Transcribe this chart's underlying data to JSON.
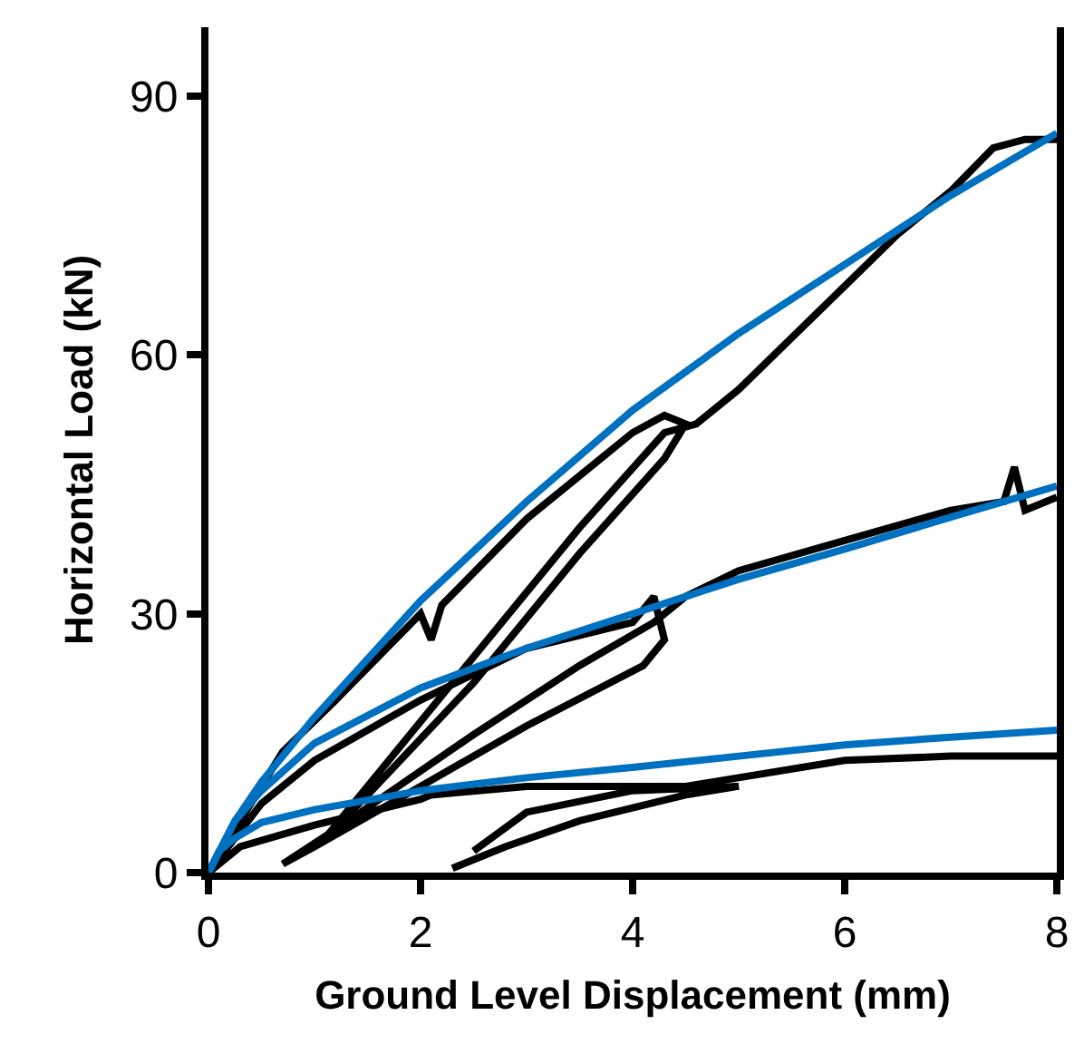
{
  "chart_data": {
    "type": "line",
    "xlabel": "Ground Level Displacement (mm)",
    "ylabel": "Horizontal Load (kN)",
    "xlim": [
      0,
      8
    ],
    "xticks": [
      0,
      2,
      4,
      6,
      8
    ],
    "ylim": [
      0,
      98
    ],
    "yticks": [
      0,
      30,
      60,
      90
    ],
    "marker": "none",
    "line_style": "solid",
    "series": [
      {
        "color": "#000000",
        "x": [
          0,
          0.3,
          0.7,
          1.2,
          2,
          2.1,
          2.2,
          3,
          4,
          4.3,
          4.5,
          4.3,
          3.5,
          2.5,
          1.5,
          1.1,
          1.3,
          2.5,
          3.5,
          4.3,
          4.6,
          5,
          5.5,
          6,
          6.5,
          7,
          7.4,
          7.7,
          8
        ],
        "values": [
          0,
          6,
          14,
          20,
          30,
          27,
          31,
          41,
          51,
          53,
          52,
          48,
          37,
          22,
          9,
          4,
          7,
          25,
          40,
          51,
          52,
          56,
          62,
          68,
          74,
          79,
          84,
          85,
          85
        ]
      },
      {
        "color": "#000000",
        "x": [
          0,
          0.5,
          1,
          2,
          3,
          4,
          4.2,
          4.3,
          4.1,
          3,
          2,
          1,
          0.7,
          1.2,
          2.5,
          3.5,
          4.2,
          4.5,
          5,
          6,
          7,
          7.5,
          7.6,
          7.7,
          8
        ],
        "values": [
          0,
          8,
          13,
          20,
          26,
          29,
          32,
          27,
          24,
          17,
          10,
          3,
          1,
          5,
          16,
          24,
          29,
          32,
          35,
          38.5,
          42,
          43,
          47,
          42,
          43.5
        ]
      },
      {
        "color": "#000000",
        "x": [
          0,
          0.3,
          1,
          2,
          2.1,
          3,
          4,
          4.5,
          5,
          6,
          7,
          8
        ],
        "values": [
          0,
          3,
          5.5,
          8.5,
          9,
          10,
          10,
          10,
          11,
          13,
          13.5,
          13.5
        ]
      },
      {
        "color": "#000000",
        "x": [
          2.3,
          2.8,
          3.5,
          4.5,
          5,
          4,
          3,
          2.5
        ],
        "values": [
          0.5,
          3,
          6,
          9,
          10,
          9.5,
          7,
          2.5
        ]
      },
      {
        "color": "#0070c0",
        "x": [
          0,
          0.25,
          0.5,
          1,
          2,
          3,
          4,
          5,
          6,
          7,
          8
        ],
        "values": [
          0,
          6,
          10.5,
          18,
          31.5,
          43,
          53.6,
          62.5,
          70.5,
          78.5,
          85.7
        ]
      },
      {
        "color": "#0070c0",
        "x": [
          0,
          0.25,
          0.5,
          1,
          2,
          3,
          4,
          5,
          6,
          7,
          8
        ],
        "values": [
          0,
          6,
          9.5,
          15,
          21.4,
          26,
          30,
          34,
          37.5,
          41.2,
          44.8
        ]
      },
      {
        "color": "#0070c0",
        "x": [
          0,
          0.1,
          0.25,
          0.5,
          1,
          2,
          3,
          4,
          5,
          6,
          7,
          8
        ],
        "values": [
          0,
          2.5,
          4,
          5.8,
          7.3,
          9.5,
          11,
          12.2,
          13.5,
          14.8,
          15.7,
          16.5
        ]
      }
    ]
  }
}
